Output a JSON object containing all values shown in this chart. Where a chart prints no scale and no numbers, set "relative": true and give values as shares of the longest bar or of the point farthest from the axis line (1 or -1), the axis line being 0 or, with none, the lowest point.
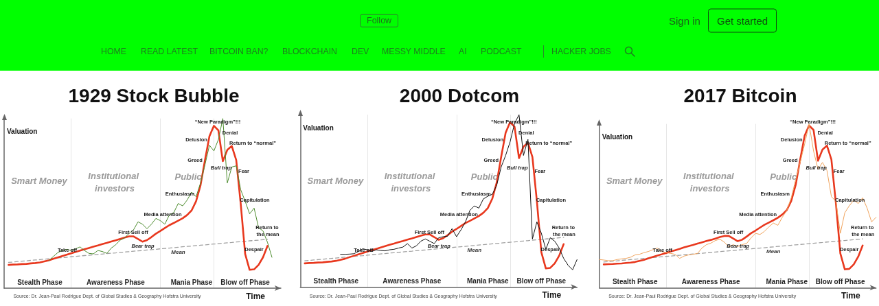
{
  "chart_data": [
    {
      "type": "other",
      "annotations": [
        "Follow",
        "Sign in",
        "Get started",
        "HOME",
        "READ LATEST",
        "BITCOIN BAN?",
        "BLOCKCHAIN",
        "DEV",
        "MESSY MIDDLE",
        "AI",
        "PODCAST",
        "HACKER JOBS"
      ]
    },
    {
      "type": "line",
      "title": "1929 Stock Bubble",
      "xlabel": "Time",
      "ylabel": "Valuation",
      "relative": true,
      "grid": "x",
      "marker": "none",
      "categories": [
        null,
        null,
        null,
        null,
        null,
        null,
        null,
        null,
        "Stealth Phase",
        null,
        null,
        null,
        null,
        null,
        null,
        null,
        null,
        null,
        null,
        null,
        null,
        null,
        null,
        null,
        null,
        "Awareness Phase",
        null,
        null,
        null,
        null,
        null,
        null,
        null,
        null,
        null,
        null,
        null,
        null,
        null,
        null,
        null,
        null,
        "Mania Phase",
        null,
        null,
        null,
        null,
        null,
        null,
        null,
        null,
        null,
        null,
        null,
        "Blow off Phase",
        null,
        null,
        null,
        null,
        null,
        null,
        null,
        null
      ],
      "series": [
        {
          "name": "Mean",
          "color": "#a0a0a0",
          "line_style": "dashed",
          "values": [
            null,
            0.152,
            0.154,
            0.157,
            0.159,
            0.161,
            0.164,
            0.166,
            0.168,
            0.171,
            0.173,
            0.175,
            0.178,
            0.18,
            0.182,
            0.185,
            0.187,
            0.19,
            0.192,
            0.194,
            0.197,
            0.199,
            0.201,
            0.204,
            0.206,
            0.208,
            0.211,
            0.213,
            0.215,
            0.218,
            0.22,
            0.222,
            0.225,
            0.227,
            0.229,
            0.232,
            0.234,
            0.236,
            0.239,
            0.241,
            0.244,
            0.246,
            0.248,
            0.251,
            0.253,
            0.255,
            0.258,
            0.26,
            0.262,
            0.265,
            0.267,
            0.269,
            0.272,
            0.274,
            0.276,
            0.279,
            0.281,
            0.283,
            0.286,
            0.288,
            null,
            null,
            null
          ]
        },
        {
          "color": "#e8381e",
          "values": [
            null,
            0.137,
            0.139,
            0.14,
            0.142,
            0.143,
            0.146,
            0.148,
            0.152,
            0.158,
            0.164,
            0.173,
            0.181,
            0.189,
            0.197,
            0.205,
            0.213,
            0.221,
            0.229,
            0.237,
            0.245,
            0.252,
            0.26,
            0.267,
            0.275,
            0.282,
            0.29,
            0.298,
            0.305,
            0.305,
            0.29,
            0.274,
            0.283,
            0.301,
            0.321,
            0.337,
            0.354,
            0.371,
            0.384,
            0.398,
            0.412,
            0.431,
            0.458,
            0.512,
            0.606,
            0.755,
            0.896,
            0.957,
            0.93,
            0.748,
            0.815,
            0.838,
            0.755,
            0.499,
            0.202,
            0.108,
            0.111,
            0.137,
            0.182,
            0.249,
            null,
            null,
            null
          ]
        },
        {
          "color": "#4d8c2e",
          "values": [
            null,
            null,
            null,
            null,
            null,
            null,
            null,
            null,
            null,
            null,
            0.162,
            0.186,
            0.209,
            0.222,
            0.229,
            0.222,
            0.232,
            0.243,
            0.222,
            0.205,
            0.202,
            0.222,
            0.216,
            0.205,
            0.236,
            0.256,
            0.283,
            0.296,
            0.323,
            0.344,
            0.391,
            0.377,
            0.35,
            0.377,
            0.411,
            0.398,
            0.377,
            0.431,
            0.445,
            0.499,
            0.485,
            0.519,
            0.566,
            0.539,
            0.62,
            0.728,
            0.842,
            0.809,
            0.876,
            1,
            0.62,
            0.714,
            0.721,
            0.58,
            0.512,
            0.438,
            0.472,
            0.357,
            0.337,
            0.27,
            0.182,
            null,
            null
          ]
        }
      ],
      "annotations": [
        "Smart Money",
        "Institutional investors",
        "Public",
        "Take off",
        "First Sell off",
        "Bear trap",
        "Media attention",
        "Enthusiasm",
        "Greed",
        "Delusion",
        "“New Paradigm”!!!",
        "Denial",
        "Return to “normal”",
        "Bull trap",
        "Fear",
        "Capitulation",
        "Return to the mean",
        "Despair",
        "Source: Dr. Jean-Paul Rodrigue Dept. of Global Studies & Geography Hofstra University"
      ]
    },
    {
      "type": "line",
      "title": "2000 Dotcom",
      "xlabel": "Time",
      "ylabel": "Valuation",
      "relative": true,
      "grid": "x",
      "marker": "none",
      "categories": [
        null,
        null,
        null,
        null,
        null,
        null,
        null,
        null,
        "Stealth Phase",
        null,
        null,
        null,
        null,
        null,
        null,
        null,
        null,
        null,
        null,
        null,
        null,
        null,
        null,
        null,
        null,
        "Awareness Phase",
        null,
        null,
        null,
        null,
        null,
        null,
        null,
        null,
        null,
        null,
        null,
        null,
        null,
        null,
        null,
        null,
        "Mania Phase",
        null,
        null,
        null,
        null,
        null,
        null,
        null,
        null,
        null,
        null,
        null,
        "Blow off Phase",
        null,
        null,
        null,
        null,
        null,
        null,
        null,
        null
      ],
      "series": [
        {
          "name": "Mean",
          "color": "#a0a0a0",
          "line_style": "dashed",
          "values": [
            null,
            0.152,
            0.154,
            0.157,
            0.159,
            0.161,
            0.164,
            0.166,
            0.168,
            0.171,
            0.173,
            0.175,
            0.178,
            0.18,
            0.182,
            0.185,
            0.187,
            0.19,
            0.192,
            0.194,
            0.197,
            0.199,
            0.201,
            0.204,
            0.206,
            0.208,
            0.211,
            0.213,
            0.215,
            0.218,
            0.22,
            0.222,
            0.225,
            0.227,
            0.229,
            0.232,
            0.234,
            0.236,
            0.239,
            0.241,
            0.244,
            0.246,
            0.248,
            0.251,
            0.253,
            0.255,
            0.258,
            0.26,
            0.262,
            0.265,
            0.267,
            0.269,
            0.272,
            0.274,
            0.276,
            0.279,
            0.281,
            0.283,
            0.286,
            0.288,
            null,
            null,
            null
          ]
        },
        {
          "color": "#e8381e",
          "values": [
            null,
            0.137,
            0.139,
            0.14,
            0.142,
            0.143,
            0.146,
            0.148,
            0.152,
            0.158,
            0.164,
            0.173,
            0.181,
            0.189,
            0.197,
            0.205,
            0.213,
            0.221,
            0.229,
            0.237,
            0.245,
            0.252,
            0.26,
            0.267,
            0.275,
            0.282,
            0.29,
            0.298,
            0.305,
            0.305,
            0.29,
            0.274,
            0.283,
            0.301,
            0.321,
            0.337,
            0.354,
            0.371,
            0.384,
            0.398,
            0.412,
            0.431,
            0.458,
            0.512,
            0.606,
            0.755,
            0.896,
            0.957,
            0.93,
            0.748,
            0.815,
            0.838,
            0.755,
            0.499,
            0.202,
            0.108,
            0.111,
            0.137,
            0.182,
            0.249,
            null,
            null,
            null
          ]
        },
        {
          "color": "#111111",
          "values": [
            null,
            null,
            null,
            null,
            null,
            null,
            null,
            null,
            null,
            0.19,
            0.19,
            0.191,
            0.193,
            0.206,
            0.222,
            0.216,
            0.206,
            0.216,
            0.212,
            0.21,
            0.216,
            0.219,
            0.226,
            0.232,
            0.252,
            0.226,
            0.239,
            0.266,
            0.279,
            0.266,
            0.252,
            0.286,
            0.292,
            0.295,
            0.339,
            0.292,
            0.332,
            0.378,
            0.445,
            0.471,
            0.458,
            0.511,
            0.527,
            0.538,
            0.591,
            0.697,
            0.764,
            0.843,
            0.95,
            1,
            0.764,
            0.857,
            0.279,
            0.378,
            0.312,
            0.219,
            0.286,
            0.266,
            0.226,
            0.166,
            0.126,
            0.1,
            0.159
          ]
        }
      ],
      "annotations": [
        "Smart Money",
        "Institutional investors",
        "Public",
        "Take off",
        "First Sell off",
        "Bear trap",
        "Media attention",
        "Enthusiasm",
        "Greed",
        "Delusion",
        "“New Paradigm”!!!",
        "Denial",
        "Return to “normal”",
        "Bull trap",
        "Fear",
        "Capitulation",
        "Return to the mean",
        "Despair",
        "Source: Dr. Jean-Paul Rodrigue Dept. of Global Studies & Geography Hofstra University"
      ]
    },
    {
      "type": "line",
      "title": "2017 Bitcoin",
      "xlabel": "Time",
      "ylabel": "Valuation",
      "relative": true,
      "grid": "x",
      "marker": "none",
      "categories": [
        null,
        null,
        null,
        null,
        null,
        null,
        null,
        null,
        "Stealth Phase",
        null,
        null,
        null,
        null,
        null,
        null,
        null,
        null,
        null,
        null,
        null,
        null,
        null,
        null,
        null,
        null,
        "Awareness Phase",
        null,
        null,
        null,
        null,
        null,
        null,
        null,
        null,
        null,
        null,
        null,
        null,
        null,
        null,
        null,
        null,
        "Mania Phase",
        null,
        null,
        null,
        null,
        null,
        null,
        null,
        null,
        null,
        null,
        null,
        "Blow off Phase",
        null,
        null,
        null,
        null,
        null,
        null,
        null,
        null
      ],
      "series": [
        {
          "name": "Mean",
          "color": "#a0a0a0",
          "line_style": "dashed",
          "values": [
            null,
            0.157,
            0.159,
            0.162,
            0.164,
            0.167,
            0.169,
            0.172,
            0.174,
            0.176,
            0.179,
            0.181,
            0.184,
            0.186,
            0.189,
            0.191,
            0.193,
            0.196,
            0.198,
            0.201,
            0.203,
            0.206,
            0.208,
            0.21,
            0.213,
            0.215,
            0.218,
            0.22,
            0.223,
            0.225,
            0.227,
            0.23,
            0.232,
            0.235,
            0.237,
            0.24,
            0.242,
            0.244,
            0.247,
            0.249,
            0.252,
            0.254,
            0.257,
            0.259,
            0.262,
            0.264,
            0.266,
            0.269,
            0.271,
            0.274,
            0.276,
            0.279,
            0.281,
            0.283,
            0.286,
            0.288,
            0.291,
            0.293,
            0.296,
            0.298,
            null,
            null,
            null
          ]
        },
        {
          "color": "#e8381e",
          "values": [
            null,
            0.142,
            0.144,
            0.145,
            0.147,
            0.148,
            0.151,
            0.153,
            0.157,
            0.164,
            0.17,
            0.179,
            0.188,
            0.196,
            0.204,
            0.212,
            0.221,
            0.229,
            0.237,
            0.246,
            0.254,
            0.261,
            0.269,
            0.277,
            0.285,
            0.292,
            0.3,
            0.309,
            0.316,
            0.316,
            0.3,
            0.284,
            0.293,
            0.312,
            0.333,
            0.349,
            0.367,
            0.384,
            0.398,
            0.412,
            0.427,
            0.447,
            0.474,
            0.53,
            0.628,
            0.782,
            0.928,
            0.991,
            0.963,
            0.775,
            0.844,
            0.868,
            0.782,
            0.517,
            0.209,
            0.112,
            0.115,
            0.142,
            0.189,
            0.258,
            null,
            null,
            null
          ]
        },
        {
          "color": "#f0a35c",
          "values": [
            0.172,
            0.169,
            0.165,
            0.165,
            0.172,
            0.176,
            0.179,
            0.186,
            0.2,
            0.204,
            0.214,
            0.221,
            0.232,
            0.242,
            0.221,
            0.214,
            0.209,
            0.204,
            0.179,
            0.193,
            0.2,
            0.204,
            0.209,
            0.242,
            0.263,
            0.272,
            0.288,
            0.296,
            0.279,
            0.249,
            0.263,
            0.251,
            0.263,
            0.27,
            0.304,
            0.332,
            0.325,
            0.344,
            0.372,
            0.395,
            0.381,
            0.43,
            0.472,
            0.549,
            0.661,
            0.765,
            0.877,
            1,
            0.835,
            0.723,
            0.765,
            0.716,
            0.556,
            0.528,
            0.332,
            0.458,
            0.5,
            0.535,
            0.514,
            0.549,
            0.486,
            0.402,
            0.43
          ]
        }
      ],
      "annotations": [
        "Smart Money",
        "Institutional investors",
        "Public",
        "Take off",
        "First Sell off",
        "Bear trap",
        "Media attention",
        "Enthusiasm",
        "Greed",
        "Delusion",
        "“New Paradigm”!!!",
        "Denial",
        "Return to “normal”",
        "Bull trap",
        "Fear",
        "Capitulation",
        "Return to the mean",
        "Despair",
        "Source: Dr. Jean-Paul Rodrigue Dept. of Global Studies & Geography Hofstra University"
      ]
    }
  ]
}
